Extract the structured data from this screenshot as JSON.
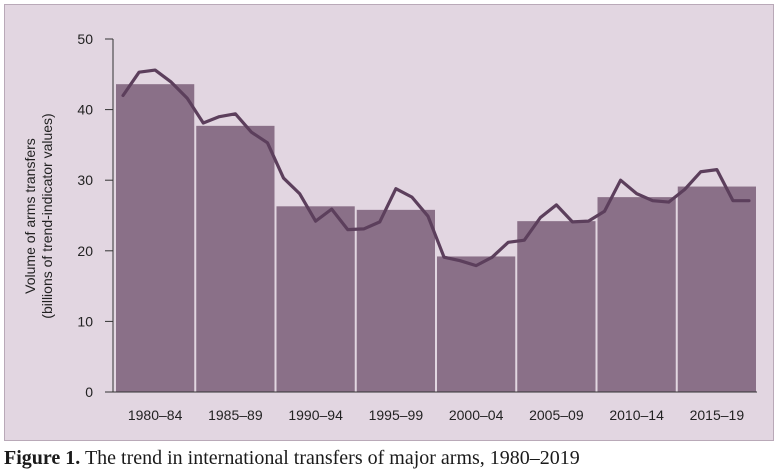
{
  "caption": {
    "label": "Figure 1.",
    "text": "The trend in international transfers of major arms, 1980–2019"
  },
  "colors": {
    "panel_background": "#e2d6e1",
    "bar_fill": "#8a7088",
    "line": "#5c3f5c",
    "axis": "#333333"
  },
  "chart_data": {
    "type": "bar",
    "title": "",
    "xlabel": "",
    "ylabel": "Volume of arms transfers",
    "ylabel_units": "(billions of trend-indicator values)",
    "ylim": [
      0,
      50
    ],
    "yticks": [
      0,
      10,
      20,
      30,
      40,
      50
    ],
    "grid": false,
    "categories": [
      "1980–84",
      "1985–89",
      "1990–94",
      "1995–99",
      "2000–04",
      "2005–09",
      "2010–14",
      "2015–19"
    ],
    "values": [
      43.6,
      37.7,
      26.3,
      25.8,
      19.2,
      24.2,
      27.6,
      29.1
    ],
    "line_series": {
      "type": "line",
      "x": [
        1980,
        1981,
        1982,
        1983,
        1984,
        1985,
        1986,
        1987,
        1988,
        1989,
        1990,
        1991,
        1992,
        1993,
        1994,
        1995,
        1996,
        1997,
        1998,
        1999,
        2000,
        2001,
        2002,
        2003,
        2004,
        2005,
        2006,
        2007,
        2008,
        2009,
        2010,
        2011,
        2012,
        2013,
        2014,
        2015,
        2016,
        2017,
        2018,
        2019
      ],
      "values": [
        42.0,
        45.3,
        45.6,
        43.9,
        41.6,
        38.1,
        39.0,
        39.4,
        36.8,
        35.3,
        30.3,
        28.1,
        24.2,
        25.9,
        23.0,
        23.1,
        24.1,
        28.8,
        27.6,
        24.9,
        19.1,
        18.6,
        17.9,
        19.1,
        21.2,
        21.5,
        24.7,
        26.5,
        24.1,
        24.2,
        25.6,
        30.0,
        28.1,
        27.1,
        26.9,
        28.7,
        31.2,
        31.5,
        27.1,
        27.1
      ]
    }
  }
}
